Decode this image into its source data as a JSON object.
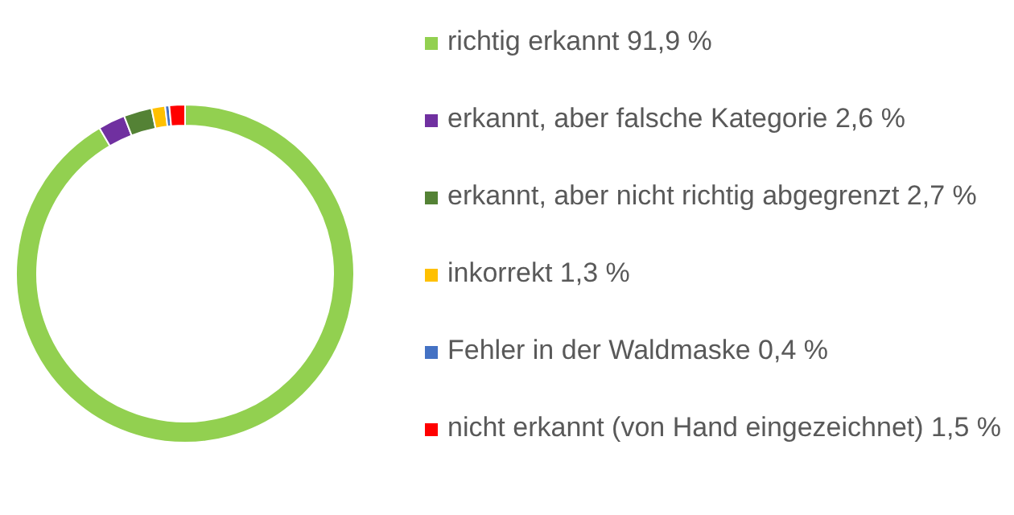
{
  "chart_data": {
    "type": "donut",
    "categories": [
      "richtig erkannt 91,9 %",
      "erkannt, aber falsche Kategorie 2,6 %",
      "erkannt, aber nicht richtig abgegrenzt 2,7 %",
      "inkorrekt 1,3 %",
      "Fehler in der Waldmaske 0,4 %",
      "nicht erkannt (von Hand eingezeichnet) 1,5 %"
    ],
    "values": [
      91.9,
      2.6,
      2.7,
      1.3,
      0.4,
      1.5
    ],
    "colors": [
      "#92d050",
      "#7030a0",
      "#548235",
      "#ffc000",
      "#4472c4",
      "#ff0000"
    ],
    "legend": "right"
  }
}
